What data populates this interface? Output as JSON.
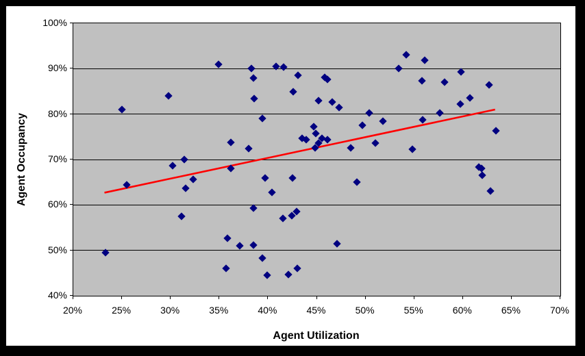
{
  "chart_data": {
    "type": "scatter",
    "title": "",
    "xlabel": "Agent Utilization",
    "ylabel": "Agent Occupancy",
    "xlim": [
      20,
      70
    ],
    "ylim": [
      40,
      100
    ],
    "x_ticks": [
      20,
      25,
      30,
      35,
      40,
      45,
      50,
      55,
      60,
      65,
      70
    ],
    "y_ticks": [
      40,
      50,
      60,
      70,
      80,
      90,
      100
    ],
    "tick_format": "percent",
    "grid": "horizontal",
    "legend": "none",
    "plot_bg_color": "#c0c0c0",
    "marker_color": "#000080",
    "marker_shape": "diamond",
    "trendline": {
      "x1": 23.2,
      "y1": 62.7,
      "x2": 63.3,
      "y2": 81.0,
      "color": "#ff0000"
    },
    "points": [
      [
        34.9,
        91.0
      ],
      [
        38.3,
        90.0
      ],
      [
        40.8,
        90.5
      ],
      [
        41.6,
        90.4
      ],
      [
        38.5,
        87.9
      ],
      [
        29.8,
        84.0
      ],
      [
        38.6,
        83.4
      ],
      [
        25.0,
        81.0
      ],
      [
        39.4,
        79.0
      ],
      [
        54.2,
        93.1
      ],
      [
        56.1,
        91.9
      ],
      [
        53.4,
        90.0
      ],
      [
        59.8,
        89.3
      ],
      [
        43.1,
        88.5
      ],
      [
        45.8,
        88.1
      ],
      [
        46.1,
        87.7
      ],
      [
        55.8,
        87.4
      ],
      [
        58.1,
        87.0
      ],
      [
        62.7,
        86.4
      ],
      [
        42.6,
        85.0
      ],
      [
        60.7,
        83.5
      ],
      [
        59.7,
        82.2
      ],
      [
        45.2,
        83.0
      ],
      [
        46.6,
        82.6
      ],
      [
        47.3,
        81.4
      ],
      [
        50.4,
        80.2
      ],
      [
        57.6,
        80.3
      ],
      [
        51.8,
        78.5
      ],
      [
        55.9,
        78.7
      ],
      [
        49.7,
        77.6
      ],
      [
        63.4,
        76.4
      ],
      [
        44.7,
        77.2
      ],
      [
        44.9,
        75.8
      ],
      [
        36.2,
        73.8
      ],
      [
        43.5,
        74.6
      ],
      [
        43.9,
        74.4
      ],
      [
        45.5,
        74.7
      ],
      [
        46.1,
        74.3
      ],
      [
        45.2,
        73.6
      ],
      [
        51.0,
        73.6
      ],
      [
        38.0,
        72.4
      ],
      [
        44.8,
        72.5
      ],
      [
        48.5,
        72.6
      ],
      [
        54.8,
        72.3
      ],
      [
        31.4,
        70.0
      ],
      [
        30.2,
        68.7
      ],
      [
        36.2,
        68.0
      ],
      [
        61.6,
        68.4
      ],
      [
        61.9,
        68.1
      ],
      [
        32.3,
        65.6
      ],
      [
        39.7,
        66.0
      ],
      [
        42.5,
        66.0
      ],
      [
        62.0,
        66.5
      ],
      [
        25.5,
        64.4
      ],
      [
        49.1,
        65.0
      ],
      [
        31.5,
        63.7
      ],
      [
        40.4,
        62.8
      ],
      [
        62.8,
        63.0
      ],
      [
        38.5,
        59.3
      ],
      [
        42.9,
        58.6
      ],
      [
        41.5,
        57.1
      ],
      [
        42.4,
        57.6
      ],
      [
        31.1,
        57.5
      ],
      [
        35.8,
        52.6
      ],
      [
        37.1,
        51.0
      ],
      [
        38.5,
        51.2
      ],
      [
        23.3,
        49.5
      ],
      [
        39.4,
        48.3
      ],
      [
        47.1,
        51.4
      ],
      [
        35.7,
        46.0
      ],
      [
        43.0,
        46.1
      ],
      [
        39.9,
        44.5
      ],
      [
        42.1,
        44.7
      ]
    ]
  }
}
